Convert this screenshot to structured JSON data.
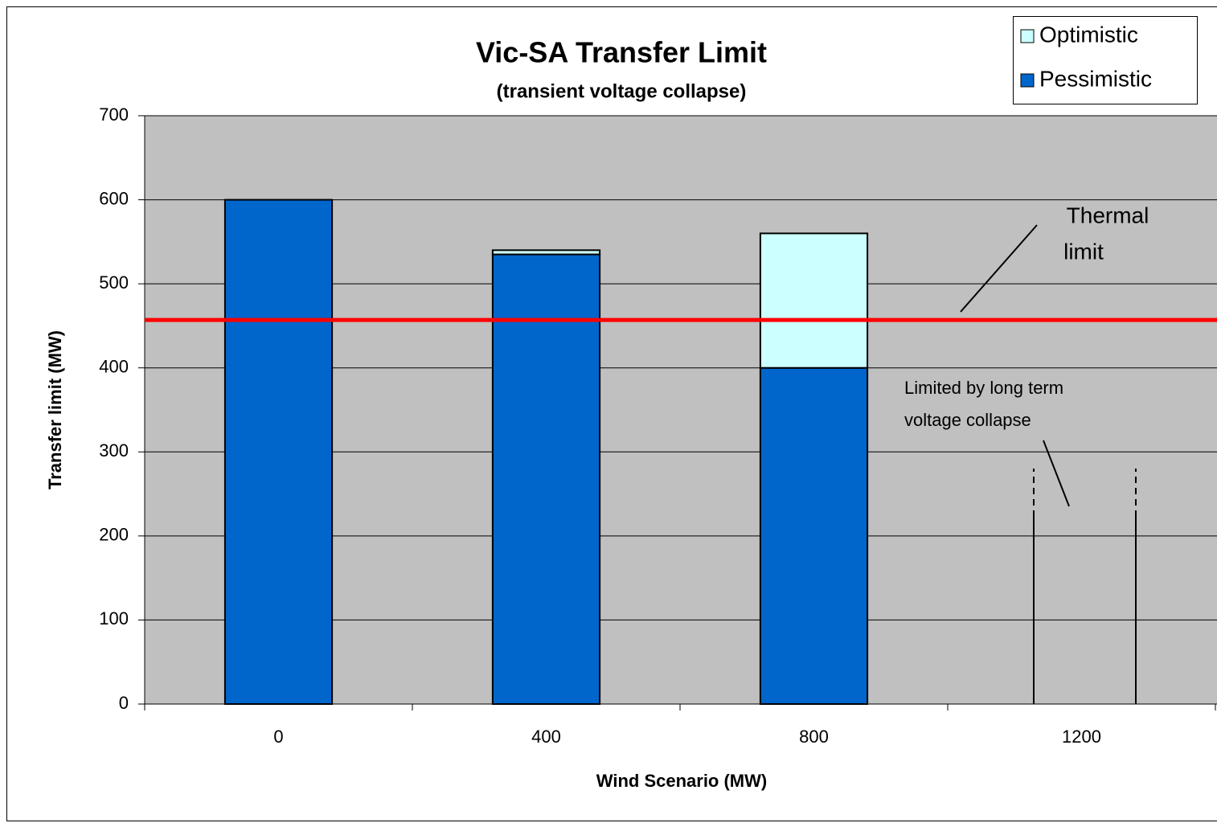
{
  "chart_data": {
    "type": "stacked_bar",
    "title": "Vic-SA Transfer Limit",
    "subtitle": "(transient voltage collapse)",
    "x_label": "Wind Scenario (MW)",
    "y_label": "Transfer limit (MW)",
    "categories": [
      "0",
      "400",
      "800",
      "1200"
    ],
    "series": [
      {
        "name": "Optimistic",
        "color": "#ccffff",
        "values": [
          0,
          5,
          160,
          null
        ]
      },
      {
        "name": "Pessimistic",
        "color": "#0066cc",
        "values": [
          600,
          535,
          400,
          null
        ]
      }
    ],
    "ylim": [
      0,
      700
    ],
    "yticks": [
      0,
      100,
      200,
      300,
      400,
      500,
      600,
      700
    ],
    "grid": true,
    "thermal_limit": {
      "value": 457,
      "color": "#ff0000"
    },
    "annotations": [
      {
        "lines": [
          "Thermal",
          "limit"
        ]
      },
      {
        "lines": [
          "Limited by long term",
          "voltage collapse"
        ]
      }
    ],
    "legend": "top-right"
  }
}
